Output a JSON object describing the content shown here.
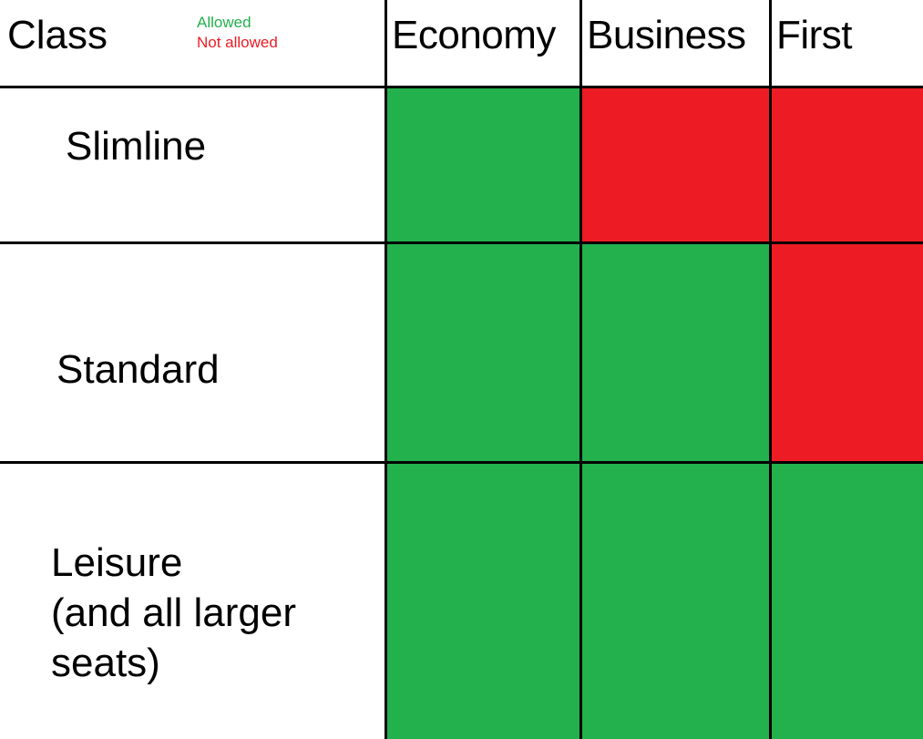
{
  "header": {
    "title": "Class",
    "legend": [
      {
        "label": "Allowed",
        "color": "#22b14c"
      },
      {
        "label": "Not allowed",
        "color": "#ed1c24"
      }
    ],
    "columns": [
      "Economy",
      "Business",
      "First"
    ]
  },
  "rows": [
    {
      "label": [
        "Slimline"
      ],
      "allowed": [
        true,
        false,
        false
      ]
    },
    {
      "label": [
        "Standard"
      ],
      "allowed": [
        true,
        true,
        false
      ]
    },
    {
      "label": [
        "Leisure",
        "(and all larger",
        "seats)"
      ],
      "allowed": [
        true,
        true,
        true
      ]
    }
  ]
}
